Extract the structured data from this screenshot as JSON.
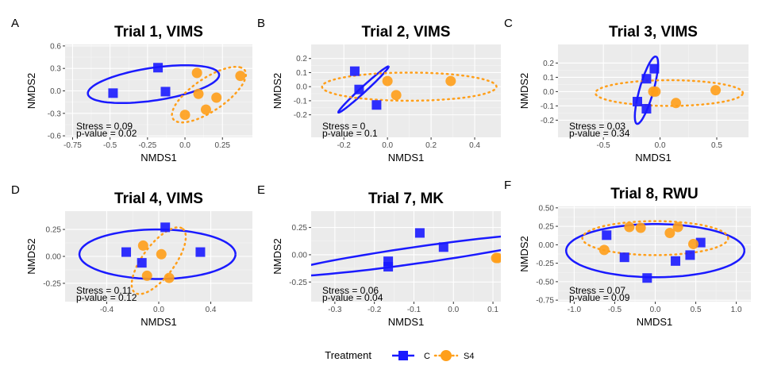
{
  "legend": {
    "title": "Treatment",
    "items": [
      {
        "label": "C",
        "color": "#1a1aff",
        "shape": "square"
      },
      {
        "label": "S4",
        "color": "#ff9f1a",
        "shape": "circle"
      }
    ]
  },
  "chart_data": [
    {
      "type": "scatter",
      "panel_label": "A",
      "title": "Trial 1, VIMS",
      "xlabel": "NMDS1",
      "ylabel": "NMDS2",
      "xlim": [
        -0.8,
        0.45
      ],
      "ylim": [
        -0.62,
        0.62
      ],
      "xticks": [
        -0.75,
        -0.5,
        -0.25,
        0.0,
        0.25
      ],
      "xtick_labels": [
        "-0.75",
        "-0.5",
        "-0.25",
        "0.0",
        "0.25"
      ],
      "yticks": [
        -0.6,
        -0.3,
        0.0,
        0.3,
        0.6
      ],
      "ytick_labels": [
        "-0.6",
        "-0.3",
        "0.0",
        "0.3",
        "0.6"
      ],
      "stress_label": "Stress = 0.09",
      "pvalue_label": "p-value = 0.02",
      "series": [
        {
          "name": "C",
          "points": [
            [
              -0.48,
              -0.03
            ],
            [
              -0.18,
              0.31
            ],
            [
              -0.13,
              -0.01
            ]
          ],
          "ellipse": {
            "cx": -0.21,
            "cy": 0.09,
            "rx": 0.46,
            "ry": 0.21,
            "angle": 20
          }
        },
        {
          "name": "S4",
          "points": [
            [
              0.08,
              0.24
            ],
            [
              0.09,
              -0.04
            ],
            [
              0.0,
              -0.32
            ],
            [
              0.14,
              -0.25
            ],
            [
              0.21,
              -0.09
            ],
            [
              0.37,
              0.2
            ]
          ],
          "ellipse": {
            "cx": 0.16,
            "cy": -0.05,
            "rx": 0.42,
            "ry": 0.15,
            "angle": 60
          }
        }
      ]
    },
    {
      "type": "scatter",
      "panel_label": "B",
      "title": "Trial 2, VIMS",
      "xlabel": "NMDS1",
      "ylabel": "NMDS2",
      "xlim": [
        -0.35,
        0.52
      ],
      "ylim": [
        -0.36,
        0.3
      ],
      "xticks": [
        -0.2,
        0.0,
        0.2,
        0.4
      ],
      "xtick_labels": [
        "-0.2",
        "0.0",
        "0.2",
        "0.4"
      ],
      "yticks": [
        -0.2,
        -0.1,
        0.0,
        0.1,
        0.2
      ],
      "ytick_labels": [
        "-0.2",
        "-0.1",
        "0.0",
        "0.1",
        "0.2"
      ],
      "stress_label": "Stress = 0",
      "pvalue_label": "p-value = 0.1",
      "series": [
        {
          "name": "C",
          "points": [
            [
              -0.15,
              0.11
            ],
            [
              -0.13,
              -0.02
            ],
            [
              -0.05,
              -0.13
            ]
          ],
          "ellipse": {
            "cx": -0.11,
            "cy": -0.02,
            "rx": 0.2,
            "ry": 0.015,
            "angle": 55
          }
        },
        {
          "name": "S4",
          "points": [
            [
              0.0,
              0.04
            ],
            [
              0.04,
              -0.06
            ],
            [
              0.29,
              0.04
            ]
          ],
          "ellipse": {
            "cx": 0.1,
            "cy": 0.0,
            "rx": 0.4,
            "ry": 0.1,
            "angle": 0
          }
        }
      ]
    },
    {
      "type": "scatter",
      "panel_label": "C",
      "title": "Trial 3, VIMS",
      "xlabel": "NMDS1",
      "ylabel": "NMDS2",
      "xlim": [
        -0.9,
        0.78
      ],
      "ylim": [
        -0.32,
        0.33
      ],
      "xticks": [
        -0.5,
        0.0,
        0.5
      ],
      "xtick_labels": [
        "-0.5",
        "0.0",
        "0.5"
      ],
      "yticks": [
        -0.2,
        -0.1,
        0.0,
        0.1,
        0.2
      ],
      "ytick_labels": [
        "-0.2",
        "-0.1",
        "0.0",
        "0.1",
        "0.2"
      ],
      "stress_label": "Stress = 0.03",
      "pvalue_label": "p-value = 0.34",
      "series": [
        {
          "name": "C",
          "points": [
            [
              -0.12,
              0.09
            ],
            [
              -0.05,
              0.16
            ],
            [
              -0.2,
              -0.07
            ],
            [
              -0.12,
              -0.12
            ]
          ],
          "ellipse": {
            "cx": -0.12,
            "cy": 0.01,
            "rx": 0.25,
            "ry": 0.06,
            "angle": 70
          }
        },
        {
          "name": "S4",
          "points": [
            [
              -0.06,
              0.0
            ],
            [
              -0.04,
              0.0
            ],
            [
              0.14,
              -0.08
            ],
            [
              0.49,
              0.01
            ]
          ],
          "ellipse": {
            "cx": 0.08,
            "cy": -0.01,
            "rx": 0.65,
            "ry": 0.09,
            "angle": 0
          }
        }
      ]
    },
    {
      "type": "scatter",
      "panel_label": "D",
      "title": "Trial 4, VIMS",
      "xlabel": "NMDS1",
      "ylabel": "NMDS2",
      "xlim": [
        -0.72,
        0.72
      ],
      "ylim": [
        -0.42,
        0.42
      ],
      "xticks": [
        -0.4,
        0.0,
        0.4
      ],
      "xtick_labels": [
        "-0.4",
        "0.0",
        "0.4"
      ],
      "yticks": [
        -0.25,
        0.0,
        0.25
      ],
      "ytick_labels": [
        "-0.25",
        "0.00",
        "0.25"
      ],
      "stress_label": "Stress = 0.11",
      "pvalue_label": "p-value = 0.12",
      "series": [
        {
          "name": "C",
          "points": [
            [
              -0.25,
              0.04
            ],
            [
              -0.13,
              -0.06
            ],
            [
              0.05,
              0.27
            ],
            [
              0.32,
              0.04
            ]
          ],
          "ellipse": {
            "cx": -0.01,
            "cy": 0.02,
            "rx": 0.6,
            "ry": 0.23,
            "angle": 0
          }
        },
        {
          "name": "S4",
          "points": [
            [
              -0.12,
              0.1
            ],
            [
              0.02,
              0.02
            ],
            [
              -0.09,
              -0.18
            ],
            [
              0.08,
              -0.2
            ]
          ],
          "ellipse": {
            "cx": 0.0,
            "cy": -0.04,
            "rx": 0.35,
            "ry": 0.13,
            "angle": 60
          }
        }
      ]
    },
    {
      "type": "scatter",
      "panel_label": "E",
      "title": "Trial 7, MK",
      "xlabel": "NMDS1",
      "ylabel": "NMDS2",
      "xlim": [
        -0.36,
        0.12
      ],
      "ylim": [
        -0.43,
        0.4
      ],
      "xticks": [
        -0.3,
        -0.2,
        -0.1,
        0.0,
        0.1
      ],
      "xtick_labels": [
        "-0.3",
        "-0.2",
        "-0.1",
        "0.0",
        "0.1"
      ],
      "yticks": [
        -0.25,
        0.0,
        0.25
      ],
      "ytick_labels": [
        "-0.25",
        "0.00",
        "0.25"
      ],
      "stress_label": "Stress = 0.06",
      "pvalue_label": "p-value = 0.04",
      "series": [
        {
          "name": "C",
          "points": [
            [
              -0.165,
              -0.06
            ],
            [
              -0.165,
              -0.11
            ],
            [
              -0.085,
              0.2
            ],
            [
              -0.025,
              0.07
            ]
          ],
          "ellipse": {
            "cx": -0.085,
            "cy": 0.0,
            "rx": 0.4,
            "ry": 0.068,
            "angle": 28
          }
        },
        {
          "name": "S4",
          "points": [
            [
              0.108,
              -0.03
            ],
            [
              0.112,
              -0.03
            ]
          ],
          "ellipse": null
        }
      ]
    },
    {
      "type": "scatter",
      "panel_label": "F",
      "title": "Trial 8, RWU",
      "xlabel": "NMDS1",
      "ylabel": "NMDS2",
      "xlim": [
        -1.2,
        1.18
      ],
      "ylim": [
        -0.77,
        0.52
      ],
      "xticks": [
        -1.0,
        -0.5,
        0.0,
        0.5,
        1.0
      ],
      "xtick_labels": [
        "-1.0",
        "-0.5",
        "0.0",
        "0.5",
        "1.0"
      ],
      "yticks": [
        -0.75,
        -0.5,
        -0.25,
        0.0,
        0.25,
        0.5
      ],
      "ytick_labels": [
        "-0.75",
        "-0.50",
        "-0.25",
        "0.00",
        "0.25",
        "0.50"
      ],
      "stress_label": "Stress = 0.07",
      "pvalue_label": "p-value = 0.09",
      "series": [
        {
          "name": "C",
          "points": [
            [
              -0.6,
              0.13
            ],
            [
              -0.38,
              -0.17
            ],
            [
              -0.1,
              -0.45
            ],
            [
              0.25,
              -0.22
            ],
            [
              0.43,
              -0.14
            ],
            [
              0.56,
              0.03
            ]
          ],
          "ellipse": {
            "cx": 0.0,
            "cy": -0.08,
            "rx": 1.1,
            "ry": 0.36,
            "angle": 0
          }
        },
        {
          "name": "S4",
          "points": [
            [
              -0.63,
              -0.07
            ],
            [
              -0.32,
              0.24
            ],
            [
              -0.18,
              0.23
            ],
            [
              0.18,
              0.16
            ],
            [
              0.28,
              0.24
            ],
            [
              0.47,
              0.01
            ]
          ],
          "ellipse": {
            "cx": 0.0,
            "cy": 0.09,
            "rx": 0.9,
            "ry": 0.23,
            "angle": 0
          }
        }
      ]
    }
  ]
}
